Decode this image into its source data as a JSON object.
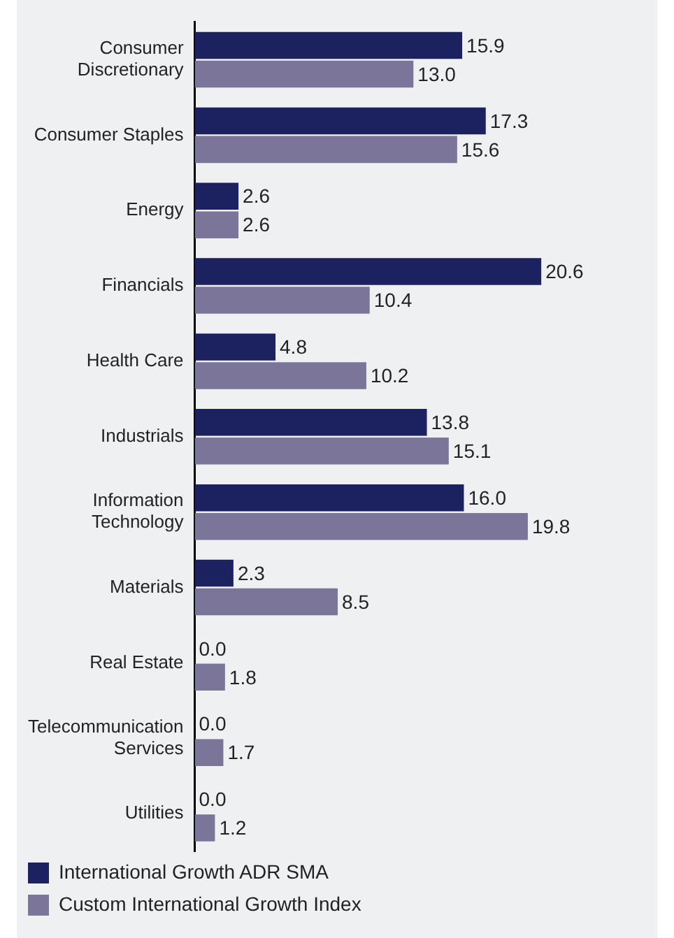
{
  "chart_data": {
    "type": "bar",
    "orientation": "horizontal",
    "categories": [
      "Consumer Discretionary",
      "Consumer Staples",
      "Energy",
      "Financials",
      "Health Care",
      "Industrials",
      "Information Technology",
      "Materials",
      "Real Estate",
      "Telecommunication Services",
      "Utilities"
    ],
    "series": [
      {
        "name": "International Growth ADR SMA",
        "color": "#1c2260",
        "values": [
          15.9,
          17.3,
          2.6,
          20.6,
          4.8,
          13.8,
          16.0,
          2.3,
          0.0,
          0.0,
          0.0
        ],
        "value_labels": [
          "15.9",
          "17.3",
          "2.6",
          "20.6",
          "4.8",
          "13.8",
          "16.0",
          "2.3",
          "0.0",
          "0.0",
          "0.0"
        ]
      },
      {
        "name": "Custom International Growth Index",
        "color": "#7a7599",
        "values": [
          13.0,
          15.6,
          2.6,
          10.4,
          10.2,
          15.1,
          19.8,
          8.5,
          1.8,
          1.7,
          1.2
        ],
        "value_labels": [
          "13.0",
          "15.6",
          "2.6",
          "10.4",
          "10.2",
          "15.1",
          "19.8",
          "8.5",
          "1.8",
          "1.7",
          "1.2"
        ]
      }
    ],
    "legend": "bottom"
  }
}
